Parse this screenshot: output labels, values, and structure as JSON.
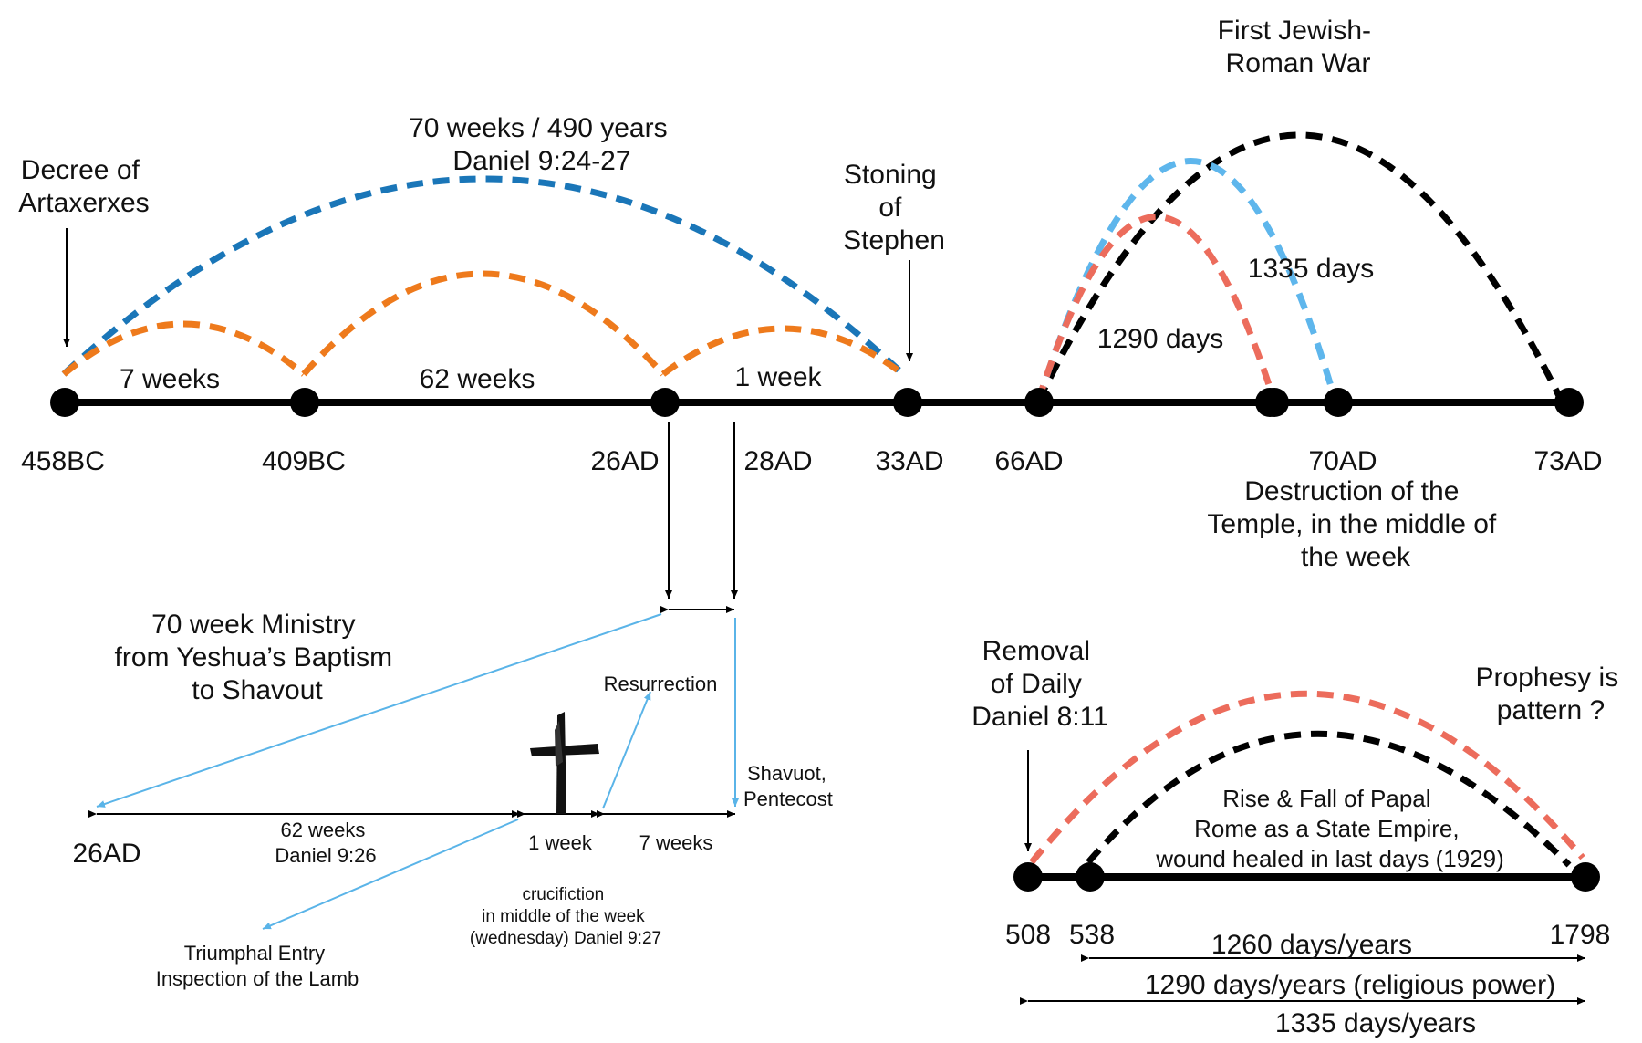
{
  "colors": {
    "timeline": "#000000",
    "blue_arc": "#1a76b8",
    "orange_arc": "#ee7a1c",
    "red_arc": "#ec6c5c",
    "light_blue_arc": "#5eb6ec",
    "black_arc": "#000000",
    "pointer_blue": "#5ab4e8"
  },
  "top": {
    "decree": [
      "Decree of",
      "Artaxerxes"
    ],
    "seventy_weeks": [
      "70 weeks / 490 years",
      "Daniel 9:24-27"
    ],
    "stoning": [
      "Stoning",
      "of",
      "Stephen"
    ],
    "war": [
      "First Jewish-",
      "Roman War"
    ],
    "days_1335": "1335 days",
    "days_1290": "1290 days",
    "seg_7w": "7 weeks",
    "seg_62w": "62 weeks",
    "seg_1w": "1 week",
    "dates": [
      "458BC",
      "409BC",
      "26AD",
      "28AD",
      "33AD",
      "66AD",
      "70AD",
      "73AD"
    ],
    "destruction": [
      "Destruction of the",
      "Temple, in the middle of",
      "the week"
    ]
  },
  "ministry": {
    "title": [
      "70 week Ministry",
      "from Yeshua’s Baptism",
      "to Shavout"
    ],
    "resurrection": "Resurrection",
    "shavuot": [
      "Shavuot,",
      "Pentecost"
    ],
    "start": "26AD",
    "seg_62": [
      "62 weeks",
      "Daniel 9:26"
    ],
    "seg_1": "1 week",
    "seg_7": "7 weeks",
    "crucifixion": [
      "crucifiction",
      "in middle of the week",
      "(wednesday) Daniel 9:27"
    ],
    "triumphal": [
      "Triumphal Entry",
      "Inspection of the Lamb"
    ]
  },
  "papal": {
    "removal": [
      "Removal",
      "of Daily",
      "Daniel 8:11"
    ],
    "prophesy": [
      "Prophesy is",
      "pattern ?"
    ],
    "rise": [
      "Rise & Fall of Papal",
      "Rome as a State Empire,",
      "wound healed in last days (1929)"
    ],
    "dates": [
      "508",
      "538",
      "1798"
    ],
    "span_1260": "1260 days/years",
    "span_1290": "1290 days/years (religious power)",
    "span_1335": "1335 days/years"
  }
}
